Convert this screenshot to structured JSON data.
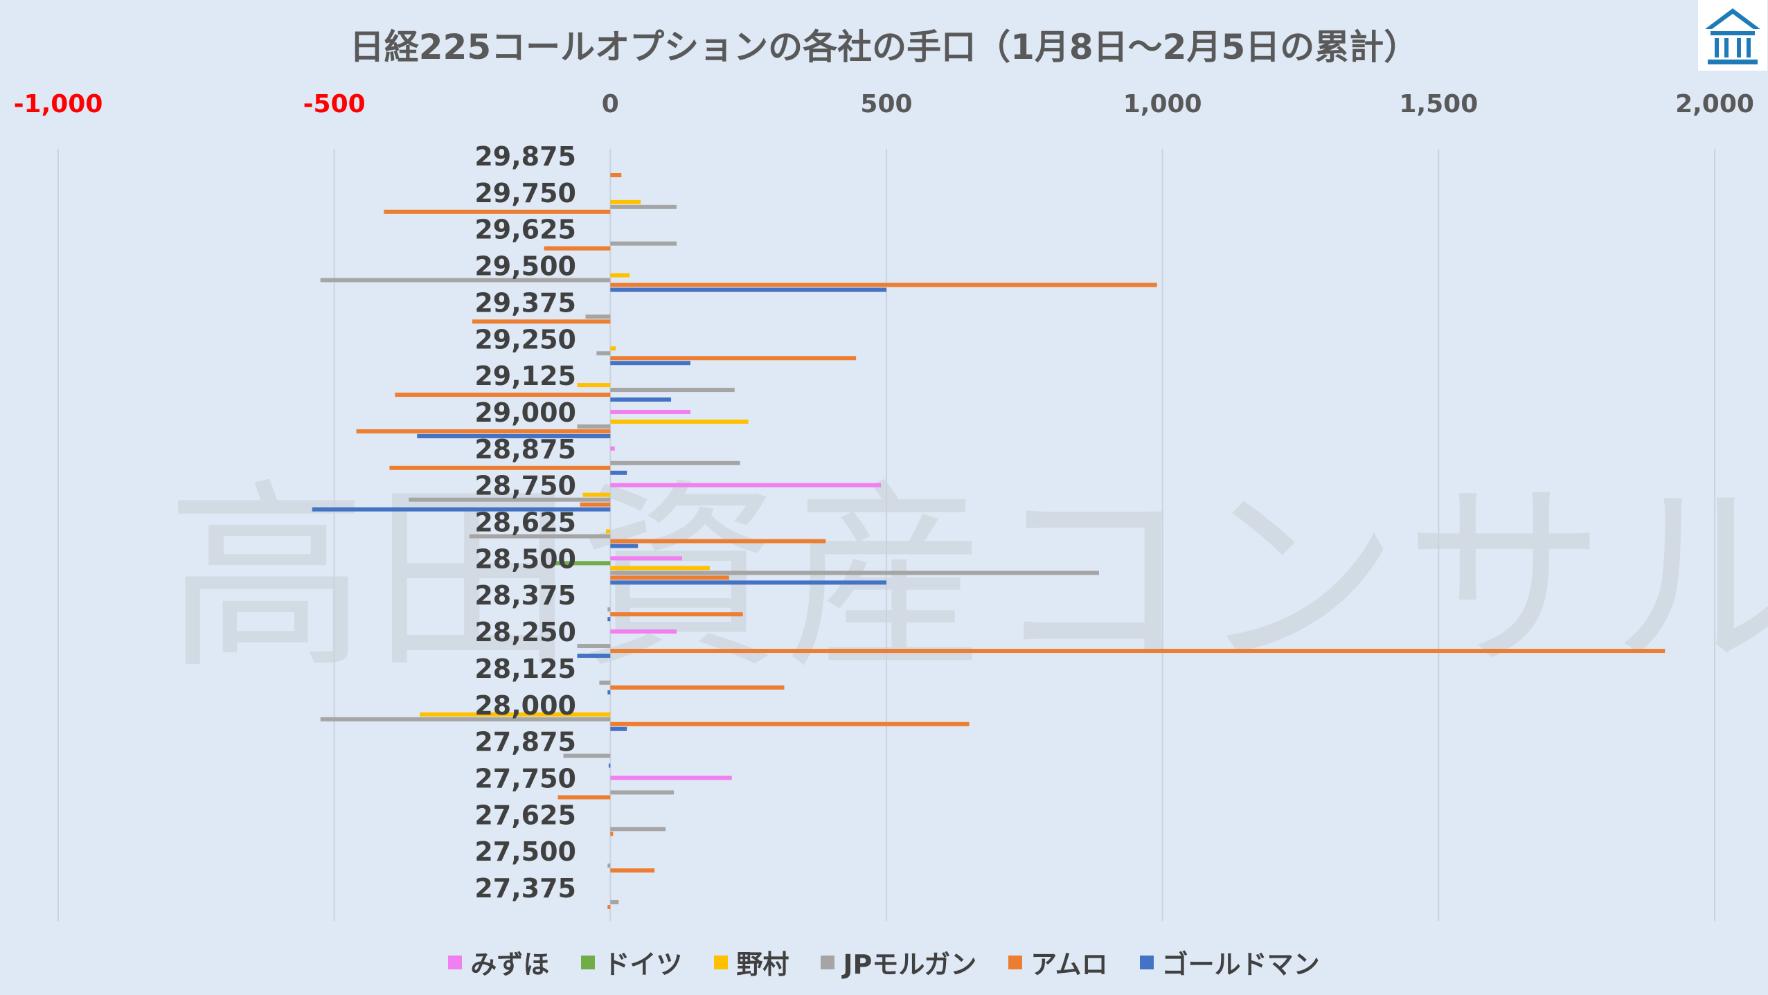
{
  "chart_data": {
    "type": "bar",
    "orientation": "horizontal",
    "title": "日経225コールオプションの各社の手口（1月8日～2月5日の累計）",
    "xlabel": "",
    "ylabel": "",
    "xlim": [
      -1000,
      2000
    ],
    "xticks": [
      -1000,
      -500,
      0,
      500,
      1000,
      1500,
      2000
    ],
    "xtick_labels": [
      "-1,000",
      "-500",
      "0",
      "500",
      "1,000",
      "1,500",
      "2,000"
    ],
    "negative_tick_color": "#ff0000",
    "positive_tick_color": "#595959",
    "grid": true,
    "legend_position": "bottom",
    "categories": [
      "29,875",
      "29,750",
      "29,625",
      "29,500",
      "29,375",
      "29,250",
      "29,125",
      "29,000",
      "28,875",
      "28,750",
      "28,625",
      "28,500",
      "28,375",
      "28,250",
      "28,125",
      "28,000",
      "27,875",
      "27,750",
      "27,625",
      "27,500",
      "27,375"
    ],
    "series": [
      {
        "name": "みずほ",
        "color": "#f27ff0",
        "values": [
          0,
          0,
          0,
          0,
          0,
          0,
          0,
          145,
          8,
          490,
          0,
          130,
          0,
          120,
          0,
          0,
          0,
          220,
          0,
          0,
          0
        ]
      },
      {
        "name": "ドイツ",
        "color": "#70ad47",
        "values": [
          0,
          0,
          0,
          0,
          0,
          0,
          0,
          0,
          0,
          0,
          0,
          -100,
          0,
          0,
          0,
          0,
          0,
          0,
          0,
          0,
          0
        ]
      },
      {
        "name": "野村",
        "color": "#ffc000",
        "values": [
          0,
          55,
          0,
          35,
          0,
          10,
          -60,
          250,
          0,
          -50,
          -8,
          180,
          0,
          0,
          0,
          -345,
          0,
          0,
          0,
          0,
          0
        ]
      },
      {
        "name": "JPモルガン",
        "color": "#a5a5a5",
        "values": [
          0,
          120,
          120,
          -525,
          -45,
          -25,
          225,
          -60,
          235,
          -365,
          -255,
          885,
          -5,
          -60,
          -20,
          -525,
          -85,
          115,
          100,
          -5,
          15
        ]
      },
      {
        "name": "アムロ",
        "color": "#ed7d31",
        "values": [
          20,
          -410,
          -120,
          990,
          -250,
          445,
          -390,
          -460,
          -400,
          -55,
          390,
          215,
          240,
          1910,
          315,
          650,
          0,
          -95,
          5,
          80,
          -5
        ]
      },
      {
        "name": "ゴールドマン",
        "color": "#4472c4",
        "values": [
          0,
          0,
          0,
          500,
          0,
          145,
          110,
          -350,
          30,
          -540,
          50,
          500,
          -5,
          -60,
          -5,
          30,
          -3,
          0,
          0,
          0,
          0
        ]
      }
    ]
  },
  "watermark": "高田資産コンサル",
  "logo": {
    "icon": "building-logo-icon",
    "color": "#1f7bb8"
  }
}
